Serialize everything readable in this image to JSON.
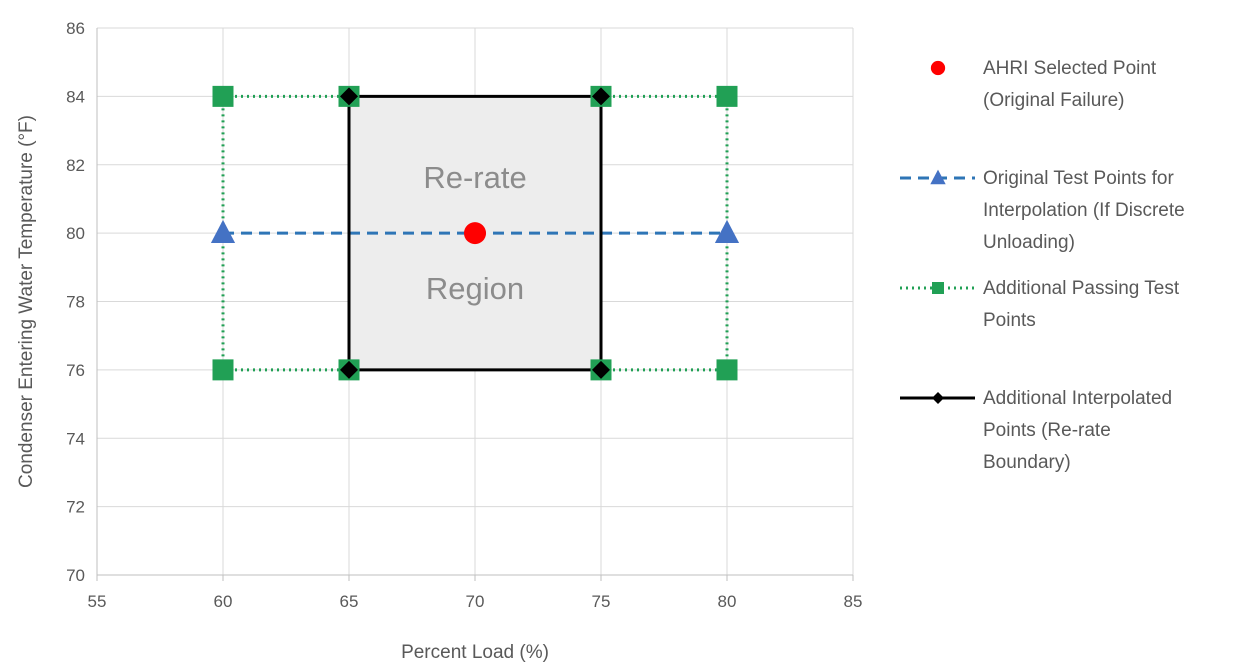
{
  "chart_data": {
    "type": "scatter",
    "title": "",
    "xlabel": "Percent Load (%)",
    "ylabel": "Condenser Entering Water Temperature (°F)",
    "xlim": [
      55,
      85
    ],
    "ylim": [
      70,
      86
    ],
    "x_ticks": [
      55,
      60,
      65,
      70,
      75,
      80,
      85
    ],
    "y_ticks": [
      70,
      72,
      74,
      76,
      78,
      80,
      82,
      84,
      86
    ],
    "grid": true,
    "legend_position": "right",
    "region": {
      "label_line1": "Re-rate",
      "label_line2": "Region",
      "x_range": [
        65,
        75
      ],
      "y_range": [
        76,
        84
      ],
      "fill": "#ededed"
    },
    "series": [
      {
        "name_lines": [
          "AHRI Selected Point",
          "(Original Failure)"
        ],
        "marker": "circle",
        "line": "none",
        "color": "#ff0000",
        "segments": [
          [
            [
              70,
              80
            ]
          ]
        ]
      },
      {
        "name_lines": [
          "Original Test Points for",
          "Interpolation (If Discrete",
          "Unloading)"
        ],
        "marker": "triangle",
        "line": "dashed",
        "color": "#4472c4",
        "line_color": "#2e75b6",
        "segments": [
          [
            [
              60,
              80
            ],
            [
              80,
              80
            ]
          ]
        ]
      },
      {
        "name_lines": [
          "Additional Passing Test",
          "Points"
        ],
        "marker": "square",
        "line": "dotted",
        "color": "#21a055",
        "segments": [
          [
            [
              60,
              84
            ],
            [
              65,
              84
            ]
          ],
          [
            [
              75,
              84
            ],
            [
              80,
              84
            ]
          ],
          [
            [
              60,
              76
            ],
            [
              65,
              76
            ]
          ],
          [
            [
              75,
              76
            ],
            [
              80,
              76
            ]
          ],
          [
            [
              60,
              84
            ],
            [
              60,
              76
            ]
          ],
          [
            [
              80,
              84
            ],
            [
              80,
              76
            ]
          ]
        ]
      },
      {
        "name_lines": [
          "Additional Interpolated",
          "Points (Re-rate",
          "Boundary)"
        ],
        "marker": "diamond",
        "line": "solid",
        "color": "#000000",
        "segments": [
          [
            [
              65,
              76
            ],
            [
              65,
              84
            ],
            [
              75,
              84
            ],
            [
              75,
              76
            ],
            [
              65,
              76
            ]
          ]
        ]
      }
    ]
  }
}
